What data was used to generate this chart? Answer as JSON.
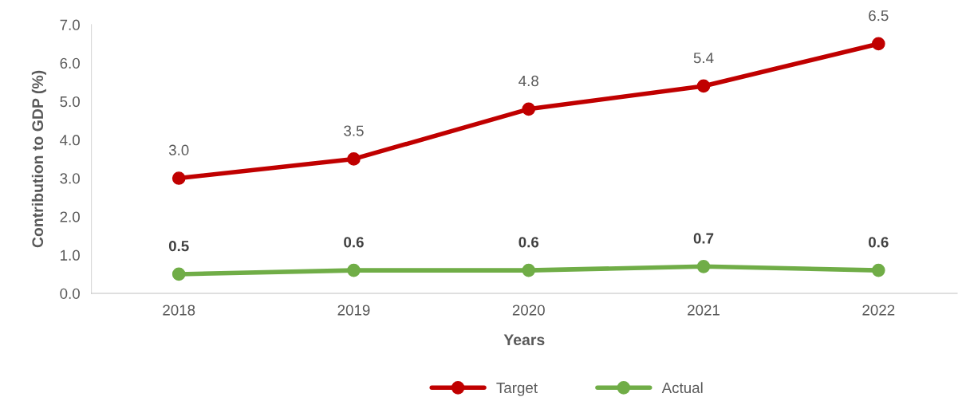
{
  "chart_data": {
    "type": "line",
    "xlabel": "Years",
    "ylabel": "Contribution to GDP (%)",
    "categories": [
      "2018",
      "2019",
      "2020",
      "2021",
      "2022"
    ],
    "series": [
      {
        "name": "Target",
        "color": "#c00000",
        "values": [
          3.0,
          3.5,
          4.8,
          5.4,
          6.5
        ],
        "value_labels": [
          "3.0",
          "3.5",
          "4.8",
          "5.4",
          "6.5"
        ]
      },
      {
        "name": "Actual",
        "color": "#70ad47",
        "values": [
          0.5,
          0.6,
          0.6,
          0.7,
          0.6
        ],
        "value_labels": [
          "0.5",
          "0.6",
          "0.6",
          "0.7",
          "0.6"
        ]
      }
    ],
    "ylim": [
      0,
      7
    ],
    "yticks": [
      {
        "value": 0,
        "label": "0.0"
      },
      {
        "value": 1,
        "label": "1.0"
      },
      {
        "value": 2,
        "label": "2.0"
      },
      {
        "value": 3,
        "label": "3.0"
      },
      {
        "value": 4,
        "label": "4.0"
      },
      {
        "value": 5,
        "label": "5.0"
      },
      {
        "value": 6,
        "label": "6.0"
      },
      {
        "value": 7,
        "label": "7.0"
      }
    ],
    "marker": "circle",
    "line_style": "solid",
    "grid": false,
    "legend": "bottom"
  }
}
